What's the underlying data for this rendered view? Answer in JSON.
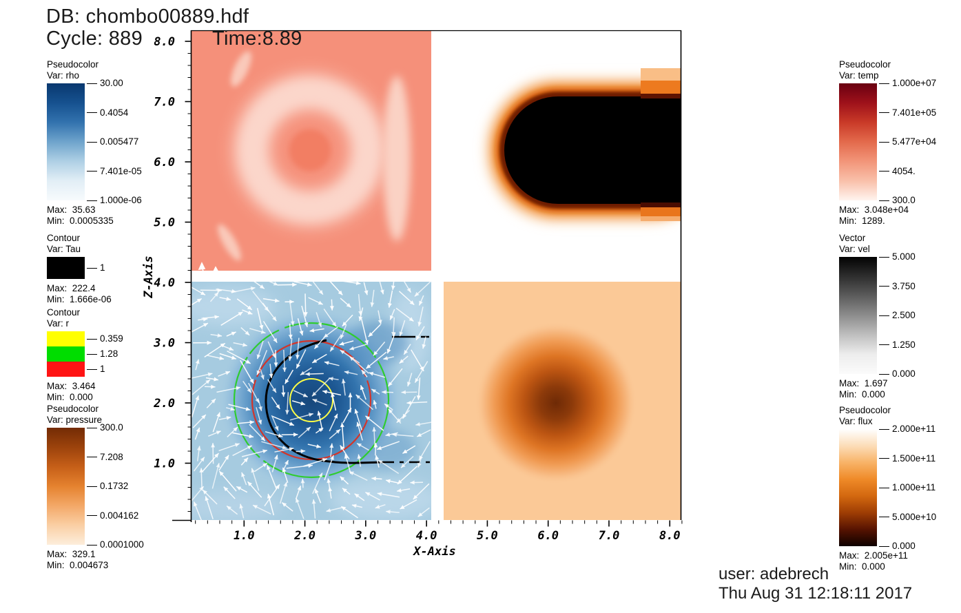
{
  "window": {
    "db_label": "DB: chombo00889.hdf",
    "cycle_label": "Cycle: 889",
    "time_label": "Time:8.89",
    "user_label": "user: adebrech",
    "timestamp_label": "Thu Aug 31 12:18:11 2017"
  },
  "axes": {
    "x_label": "X-Axis",
    "z_label": "Z-Axis",
    "x_tick_labels": [
      "1.0",
      "2.0",
      "3.0",
      "4.0",
      "5.0",
      "6.0",
      "7.0",
      "8.0"
    ],
    "z_tick_labels": [
      "1.0",
      "2.0",
      "3.0",
      "4.0",
      "5.0",
      "6.0",
      "7.0",
      "8.0"
    ]
  },
  "legends": [
    {
      "id": "rho",
      "type_label": "Pseudocolor",
      "var_label": "Var: rho",
      "bar": {
        "kind": "gradient",
        "stops": [
          "#09386F",
          "#16518F",
          "#3272AE",
          "#6FA4CC",
          "#AFD0E5",
          "#E2EEF6",
          "#F7FBFD"
        ]
      },
      "tick_labels": [
        "30.00",
        "0.4054",
        "0.005477",
        "7.401e-05",
        "1.000e-06"
      ],
      "max_label": "Max:  35.63",
      "min_label": "Min:  0.0005335"
    },
    {
      "id": "tau",
      "type_label": "Contour",
      "var_label": "Var: Tau",
      "bar": {
        "kind": "swatches",
        "colors": [
          "#000000"
        ],
        "swatch_height": 32
      },
      "tick_labels": [
        "1"
      ],
      "max_label": "Max:  222.4",
      "min_label": "Min:  1.666e-06"
    },
    {
      "id": "r",
      "type_label": "Contour",
      "var_label": "Var: r",
      "bar": {
        "kind": "swatches",
        "colors": [
          "#FFFF00",
          "#00DD00",
          "#FF1414"
        ],
        "swatch_height": 22
      },
      "tick_labels": [
        "0.359",
        "1.28",
        "1"
      ],
      "max_label": "Max:  3.464",
      "min_label": "Min:  0.000"
    },
    {
      "id": "pressure",
      "type_label": "Pseudocolor",
      "var_label": "Var: pressure",
      "bar": {
        "kind": "gradient",
        "stops": [
          "#732B05",
          "#9C430C",
          "#C65F18",
          "#E5822F",
          "#F3A868",
          "#FACFA4",
          "#FDEEDC"
        ]
      },
      "tick_labels": [
        "300.0",
        "7.208",
        "0.1732",
        "0.004162",
        "0.0001000"
      ],
      "max_label": "Max:  329.1",
      "min_label": "Min:  0.004673"
    },
    {
      "id": "temp",
      "type_label": "Pseudocolor",
      "var_label": "Var: temp",
      "bar": {
        "kind": "gradient",
        "stops": [
          "#690011",
          "#9E111A",
          "#C93A28",
          "#E36A4C",
          "#F29579",
          "#F9C0AA",
          "#FFF4EF"
        ]
      },
      "tick_labels": [
        "1.000e+07",
        "7.401e+05",
        "5.477e+04",
        "4054.",
        "300.0"
      ],
      "max_label": "Max:  3.048e+04",
      "min_label": "Min:  1289."
    },
    {
      "id": "vel",
      "type_label": "Vector",
      "var_label": "Var: vel",
      "bar": {
        "kind": "gradient",
        "stops": [
          "#030303",
          "#2E2E2E",
          "#5C5C5C",
          "#8D8D8D",
          "#BFBFBF",
          "#EDEDED",
          "#FBFBFB"
        ]
      },
      "tick_labels": [
        "5.000",
        "3.750",
        "2.500",
        "1.250",
        "0.000"
      ],
      "max_label": "Max:  1.697",
      "min_label": "Min:  0.000"
    },
    {
      "id": "flux",
      "type_label": "Pseudocolor",
      "var_label": "Var: flux",
      "bar": {
        "kind": "gradient",
        "stops": [
          "#FFFFFF",
          "#FCDDB8",
          "#F8B367",
          "#EF8A28",
          "#D3680F",
          "#9E3D04",
          "#561301",
          "#0E0100"
        ]
      },
      "tick_labels": [
        "2.000e+11",
        "1.500e+11",
        "1.000e+11",
        "5.000e+10",
        "0.000"
      ],
      "max_label": "Max:  2.005e+11",
      "min_label": "Min:  0.000"
    }
  ],
  "vectors": {
    "seed": 9,
    "color": "#ffffff",
    "approx_count": 256
  },
  "colors": {
    "panel_temp_bg": "#F5907A",
    "panel_rho_bg": "#A6CBE0",
    "panel_pressure_bg": "#FBC997",
    "panel_flux_bg": "#FFFFFF",
    "contour_tau": "#000000",
    "contour_r_levels": [
      "#FFFF45",
      "#2FCC2F",
      "#D3352A"
    ],
    "vector_arrows": "#FFFFFF"
  },
  "chart_data": [
    {
      "type": "heatmap",
      "panel": "top-left",
      "variable": "temp",
      "x_range": [
        0.12,
        4.05
      ],
      "z_range": [
        4.2,
        8.17
      ],
      "colormap": "white-to-dark-red",
      "scale_ticks": [
        "1.000e+07",
        "7.401e+05",
        "5.477e+04",
        "4054.",
        "300.0"
      ],
      "data_max": "3.048e+04",
      "data_min": "1289.",
      "features": [
        "lighter ring (lower temp) centered near (2.1, 6.2), radius ~1.2",
        "slightly hotter core disc at center",
        "light vertical streak near x=3.4"
      ]
    },
    {
      "type": "heatmap",
      "panel": "top-right",
      "variable": "flux",
      "x_range": [
        4.05,
        8.17
      ],
      "z_range": [
        4.2,
        8.17
      ],
      "colormap": "white(high)-to-black(zero)",
      "scale_ticks": [
        "2.000e+11",
        "1.500e+11",
        "1.000e+11",
        "5.000e+10",
        "0.000"
      ],
      "data_max": "2.005e+11",
      "data_min": "0.000",
      "features": [
        "black zero-flux bullet-shaped region from x~5.3 to right edge, z~5.3-7.1, rimmed by orange/dark-red gradient on white background",
        "coarse stepped blocks at right edge"
      ]
    },
    {
      "type": "heatmap",
      "panel": "bottom-left",
      "variable": "rho",
      "x_range": [
        0.12,
        4.05
      ],
      "z_range": [
        0.06,
        4.03
      ],
      "colormap": "Blues (dark=high)",
      "scale_ticks": [
        "30.00",
        "0.4054",
        "0.005477",
        "7.401e-05",
        "1.000e-06"
      ],
      "data_max": "35.63",
      "data_min": "0.0005335",
      "overlays": [
        {
          "kind": "vector-field",
          "variable": "vel",
          "glyph": "white arrows",
          "max": "1.697"
        },
        {
          "kind": "contour",
          "variable": "Tau",
          "level": "1",
          "color": "black",
          "shape": "open arc around core plus dashed horizontal lines at z~3.05 and z~1.0"
        },
        {
          "kind": "contour",
          "variable": "r",
          "levels": [
            "0.359 yellow r~0.35",
            "1.28 green r~1.28",
            "1 red r~0.97"
          ],
          "center": [
            2.05,
            2.05
          ]
        }
      ],
      "features": [
        "high-density dark-blue core centered near (2.05, 2.05)"
      ]
    },
    {
      "type": "heatmap",
      "panel": "bottom-right",
      "variable": "pressure",
      "x_range": [
        4.25,
        8.17
      ],
      "z_range": [
        0.06,
        4.03
      ],
      "colormap": "white-to-dark-brown (dark=high)",
      "scale_ticks": [
        "300.0",
        "7.208",
        "0.1732",
        "0.004162",
        "0.0001000"
      ],
      "data_max": "329.1",
      "data_min": "0.004673",
      "features": [
        "dark high-pressure blob centered near (6.1, 2.0), radius ~1.3"
      ]
    }
  ]
}
